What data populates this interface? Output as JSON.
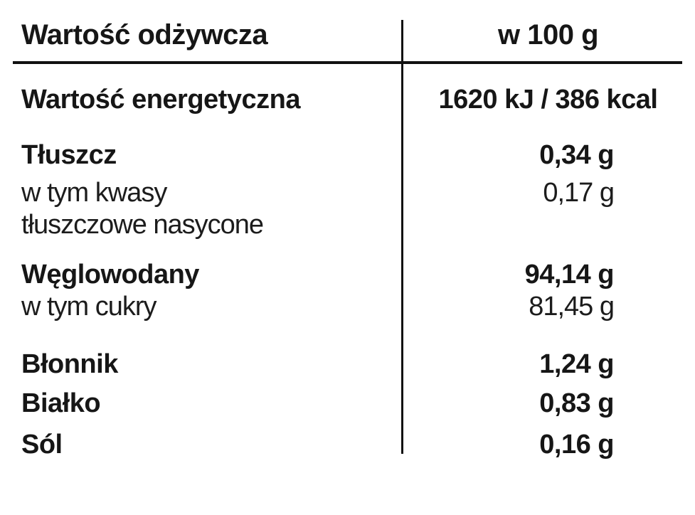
{
  "table": {
    "title": "Wartość odżywcza",
    "colors": {
      "background": "#ffffff",
      "text": "#161616",
      "rule": "#111111"
    },
    "header": {
      "label": "Wartość odżywcza",
      "value": "w 100 g"
    },
    "rows": [
      {
        "name": "energy",
        "label": "Wartość energetyczna",
        "value": "1620 kJ / 386 kcal"
      },
      {
        "name": "fat",
        "label": "Tłuszcz",
        "value": "0,34 g"
      },
      {
        "name": "saturated-fat",
        "label_lines": [
          "w tym kwasy",
          "tłuszczowe nasycone"
        ],
        "value": "0,17 g"
      },
      {
        "name": "carbohydrates",
        "label": "Węglowodany",
        "value": "94,14 g"
      },
      {
        "name": "sugars",
        "label": "w tym cukry",
        "value": "81,45 g"
      },
      {
        "name": "fiber",
        "label": "Błonnik",
        "value": "1,24 g"
      },
      {
        "name": "protein",
        "label": "Białko",
        "value": "0,83 g"
      },
      {
        "name": "salt",
        "label": "Sól",
        "value": "0,16 g"
      }
    ]
  }
}
